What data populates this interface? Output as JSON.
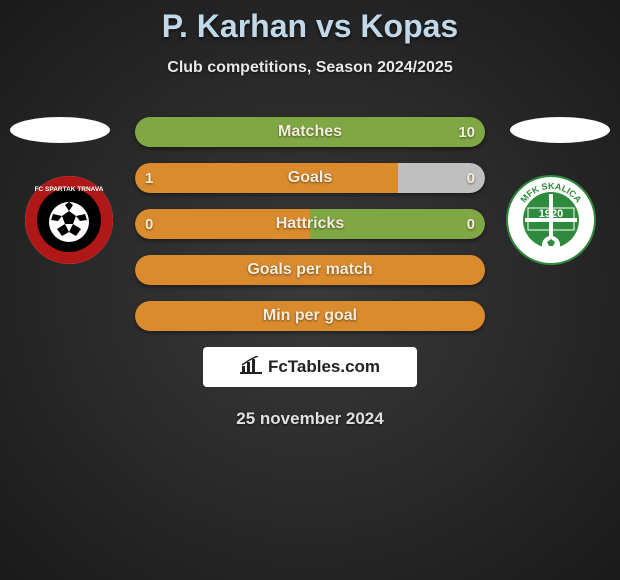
{
  "title": "P. Karhan vs Kopas",
  "subtitle": "Club competitions, Season 2024/2025",
  "date": "25 november 2024",
  "branding": "FcTables.com",
  "colors": {
    "left_fill": "#d98b2e",
    "right_fill": "#7fa845",
    "neutral_fill": "#bfbfbf"
  },
  "left_club": {
    "name": "FC Spartak Trnava",
    "outer": "#b01818",
    "inner": "#000000",
    "accent": "#ffffff"
  },
  "right_club": {
    "name": "MFK Skalica",
    "outer": "#ffffff",
    "inner": "#2e8b3d",
    "year": "1920"
  },
  "bars": [
    {
      "label": "Matches",
      "left_val": "",
      "right_val": "10",
      "left_pct": 0,
      "left_color": "neutral",
      "right_color": "right"
    },
    {
      "label": "Goals",
      "left_val": "1",
      "right_val": "0",
      "left_pct": 75,
      "left_color": "left",
      "right_color": "neutral"
    },
    {
      "label": "Hattricks",
      "left_val": "0",
      "right_val": "0",
      "left_pct": 50,
      "left_color": "left",
      "right_color": "right"
    },
    {
      "label": "Goals per match",
      "left_val": "",
      "right_val": "",
      "left_pct": 100,
      "left_color": "left",
      "right_color": "left"
    },
    {
      "label": "Min per goal",
      "left_val": "",
      "right_val": "",
      "left_pct": 100,
      "left_color": "left",
      "right_color": "left"
    }
  ]
}
